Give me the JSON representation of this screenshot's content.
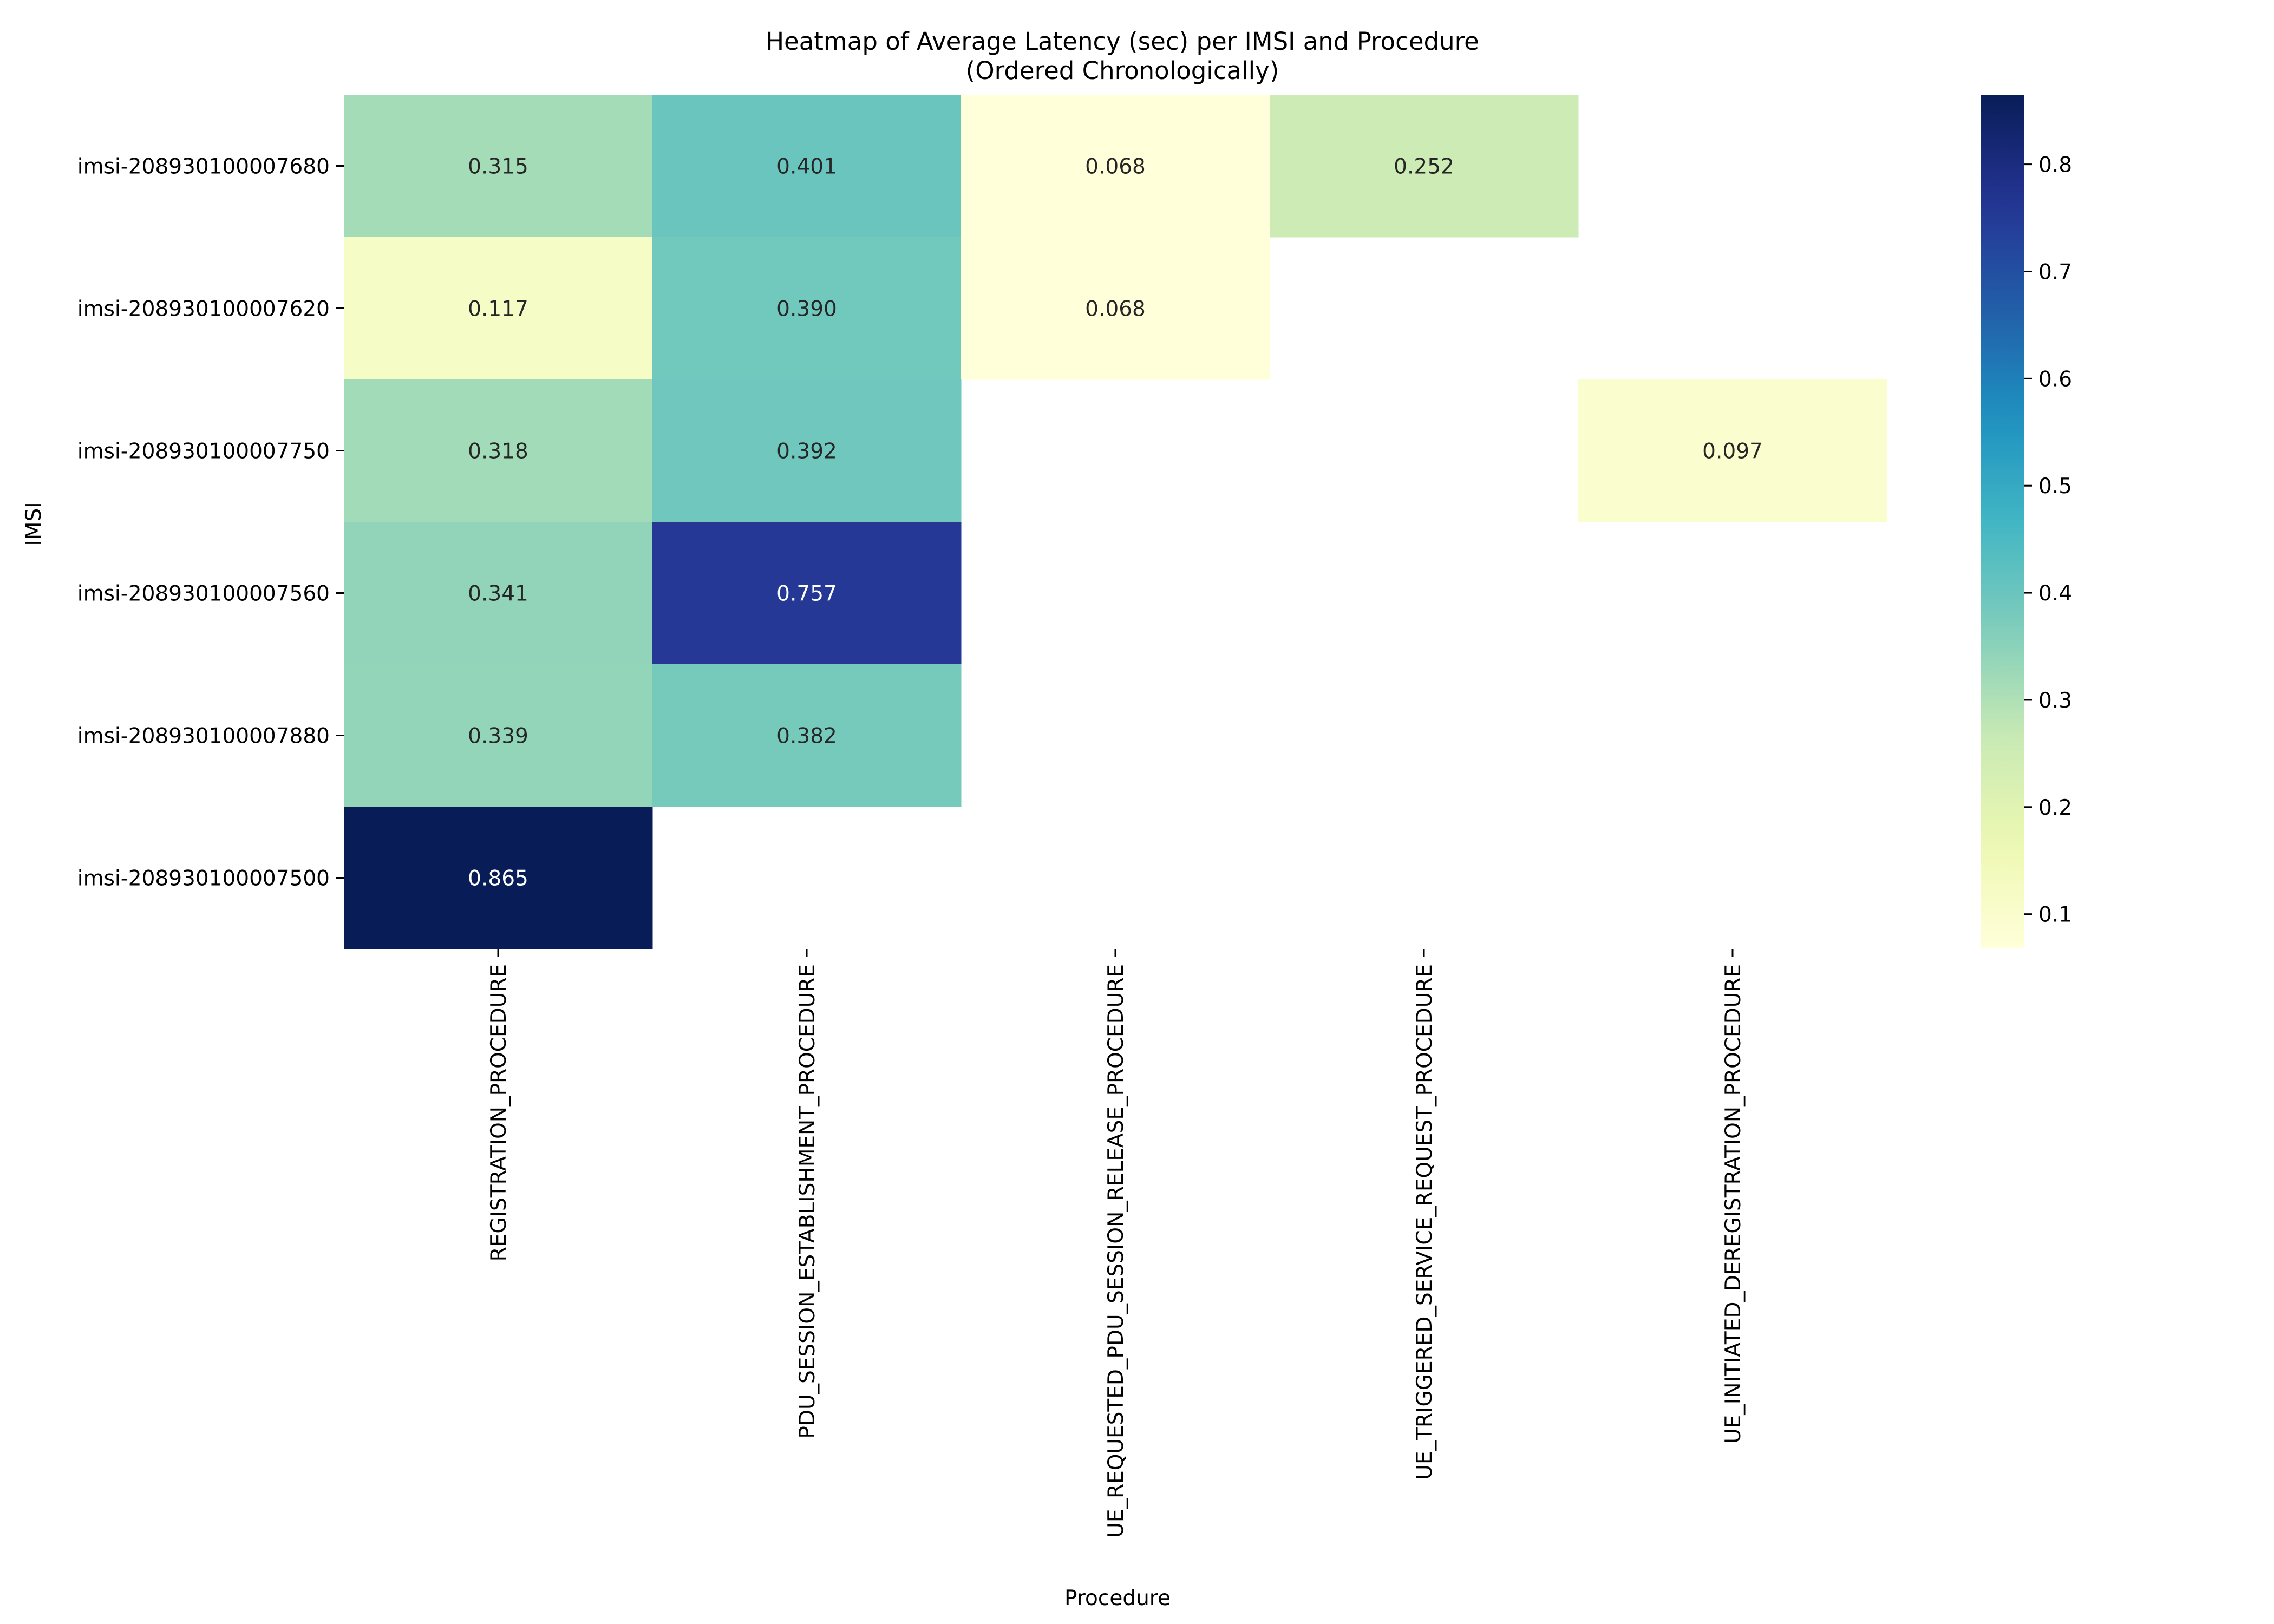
{
  "chart_data": {
    "type": "heatmap",
    "title": "Heatmap of Average Latency (sec) per IMSI and Procedure",
    "subtitle": "(Ordered Chronologically)",
    "xlabel": "Procedure",
    "ylabel": "IMSI",
    "x_categories": [
      "REGISTRATION_PROCEDURE",
      "PDU_SESSION_ESTABLISHMENT_PROCEDURE",
      "UE_REQUESTED_PDU_SESSION_RELEASE_PROCEDURE",
      "UE_TRIGGERED_SERVICE_REQUEST_PROCEDURE",
      "UE_INITIATED_DEREGISTRATION_PROCEDURE"
    ],
    "y_categories": [
      "imsi-208930100007680",
      "imsi-208930100007620",
      "imsi-208930100007750",
      "imsi-208930100007560",
      "imsi-208930100007880",
      "imsi-208930100007500"
    ],
    "values": [
      [
        0.315,
        0.401,
        0.068,
        0.252,
        null
      ],
      [
        0.117,
        0.39,
        0.068,
        null,
        null
      ],
      [
        0.318,
        0.392,
        null,
        null,
        0.097
      ],
      [
        0.341,
        0.757,
        null,
        null,
        null
      ],
      [
        0.339,
        0.382,
        null,
        null,
        null
      ],
      [
        0.865,
        null,
        null,
        null,
        null
      ]
    ],
    "value_labels": [
      [
        "0.315",
        "0.401",
        "0.068",
        "0.252",
        null
      ],
      [
        "0.117",
        "0.390",
        "0.068",
        null,
        null
      ],
      [
        "0.318",
        "0.392",
        null,
        null,
        "0.097"
      ],
      [
        "0.341",
        "0.757",
        null,
        null,
        null
      ],
      [
        "0.339",
        "0.382",
        null,
        null,
        null
      ],
      [
        "0.865",
        null,
        null,
        null,
        null
      ]
    ],
    "colormap": "YlGnBu",
    "color_range": [
      0.068,
      0.865
    ],
    "colorbar_ticks": [
      0.1,
      0.2,
      0.3,
      0.4,
      0.5,
      0.6,
      0.7,
      0.8
    ],
    "colorbar_tick_labels": [
      "0.1",
      "0.2",
      "0.3",
      "0.4",
      "0.5",
      "0.6",
      "0.7",
      "0.8"
    ],
    "colorbar_position": "right",
    "grid": false
  }
}
